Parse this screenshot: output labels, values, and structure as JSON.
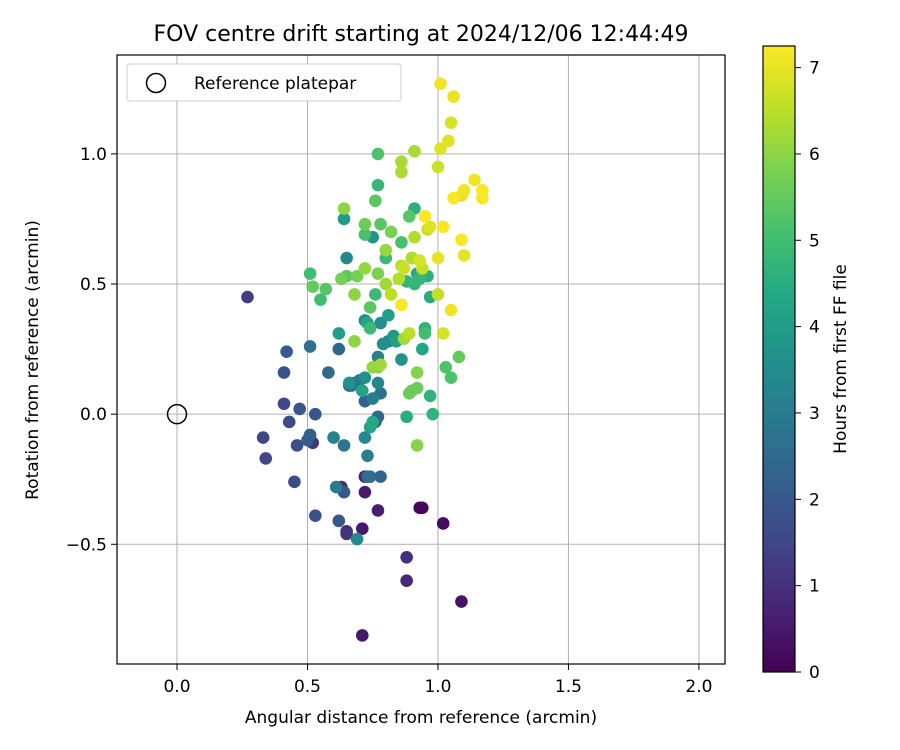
{
  "chart_data": {
    "type": "scatter",
    "title": "FOV centre drift starting at 2024/12/06 12:44:49",
    "xlabel": "Angular distance from reference (arcmin)",
    "ylabel": "Rotation from reference (arcmin)",
    "xlim": [
      -0.23,
      2.1
    ],
    "ylim": [
      -0.96,
      1.38
    ],
    "xticks": [
      0.0,
      0.5,
      1.0,
      1.5,
      2.0
    ],
    "xtick_labels": [
      "0.0",
      "0.5",
      "1.0",
      "1.5",
      "2.0"
    ],
    "yticks": [
      -0.5,
      0.0,
      0.5,
      1.0
    ],
    "ytick_labels": [
      "−0.5",
      "0.0",
      "0.5",
      "1.0"
    ],
    "grid": true,
    "legend": {
      "placement": "upper-left",
      "label": "Reference platepar"
    },
    "reference_point": {
      "x": 0.0,
      "y": 0.0
    },
    "colorbar": {
      "label": "Hours from first FF file",
      "min": 0,
      "max": 7.25,
      "ticks": [
        0,
        1,
        2,
        3,
        4,
        5,
        6,
        7
      ],
      "tick_labels": [
        "0",
        "1",
        "2",
        "3",
        "4",
        "5",
        "6",
        "7"
      ],
      "colormap": "viridis"
    },
    "series": [
      {
        "points": [
          {
            "x": 0.93,
            "y": -0.36,
            "h": 0.1
          },
          {
            "x": 0.94,
            "y": -0.36,
            "h": 0.15
          },
          {
            "x": 1.02,
            "y": -0.42,
            "h": 0.2
          },
          {
            "x": 1.09,
            "y": -0.72,
            "h": 0.4
          },
          {
            "x": 0.71,
            "y": -0.85,
            "h": 0.5
          },
          {
            "x": 0.71,
            "y": -0.44,
            "h": 0.5
          },
          {
            "x": 0.72,
            "y": -0.3,
            "h": 0.55
          },
          {
            "x": 0.77,
            "y": -0.37,
            "h": 0.6
          },
          {
            "x": 0.72,
            "y": -0.24,
            "h": 0.65
          },
          {
            "x": 0.88,
            "y": -0.64,
            "h": 0.8
          },
          {
            "x": 0.65,
            "y": -0.45,
            "h": 0.9
          },
          {
            "x": 0.88,
            "y": -0.55,
            "h": 1.0
          },
          {
            "x": 0.63,
            "y": -0.28,
            "h": 1.0
          },
          {
            "x": 0.65,
            "y": -0.46,
            "h": 1.1
          },
          {
            "x": 0.52,
            "y": -0.11,
            "h": 1.1
          },
          {
            "x": 0.27,
            "y": 0.45,
            "h": 1.3
          },
          {
            "x": 0.33,
            "y": -0.09,
            "h": 1.5
          },
          {
            "x": 0.34,
            "y": -0.17,
            "h": 1.5
          },
          {
            "x": 0.43,
            "y": -0.03,
            "h": 1.6
          },
          {
            "x": 0.41,
            "y": 0.04,
            "h": 1.6
          },
          {
            "x": 0.45,
            "y": -0.26,
            "h": 1.7
          },
          {
            "x": 0.46,
            "y": -0.12,
            "h": 1.7
          },
          {
            "x": 0.53,
            "y": -0.39,
            "h": 1.8
          },
          {
            "x": 0.41,
            "y": 0.16,
            "h": 1.8
          },
          {
            "x": 0.47,
            "y": 0.02,
            "h": 1.9
          },
          {
            "x": 0.53,
            "y": 0.0,
            "h": 1.9
          },
          {
            "x": 0.64,
            "y": -0.3,
            "h": 2.0
          },
          {
            "x": 0.62,
            "y": -0.41,
            "h": 2.0
          },
          {
            "x": 0.42,
            "y": 0.24,
            "h": 2.1
          },
          {
            "x": 0.5,
            "y": -0.1,
            "h": 2.1
          },
          {
            "x": 0.51,
            "y": -0.08,
            "h": 2.2
          },
          {
            "x": 0.76,
            "y": -0.03,
            "h": 2.2
          },
          {
            "x": 0.72,
            "y": 0.05,
            "h": 2.3
          },
          {
            "x": 0.66,
            "y": 0.11,
            "h": 2.3
          },
          {
            "x": 0.78,
            "y": -0.24,
            "h": 2.3
          },
          {
            "x": 0.62,
            "y": 0.25,
            "h": 2.4
          },
          {
            "x": 0.77,
            "y": -0.01,
            "h": 2.4
          },
          {
            "x": 0.58,
            "y": 0.16,
            "h": 2.5
          },
          {
            "x": 0.73,
            "y": -0.24,
            "h": 2.5
          },
          {
            "x": 0.68,
            "y": 0.12,
            "h": 2.6
          },
          {
            "x": 0.51,
            "y": 0.26,
            "h": 2.6
          },
          {
            "x": 0.74,
            "y": -0.24,
            "h": 2.6
          },
          {
            "x": 0.78,
            "y": 0.08,
            "h": 2.7
          },
          {
            "x": 0.7,
            "y": 0.13,
            "h": 2.8
          },
          {
            "x": 0.64,
            "y": -0.12,
            "h": 2.8
          },
          {
            "x": 0.67,
            "y": 0.11,
            "h": 2.9
          },
          {
            "x": 0.79,
            "y": 0.27,
            "h": 2.9
          },
          {
            "x": 0.61,
            "y": -0.28,
            "h": 3.0
          },
          {
            "x": 0.75,
            "y": 0.06,
            "h": 3.0
          },
          {
            "x": 0.77,
            "y": 0.22,
            "h": 3.1
          },
          {
            "x": 0.73,
            "y": -0.16,
            "h": 3.1
          },
          {
            "x": 0.6,
            "y": -0.09,
            "h": 3.2
          },
          {
            "x": 0.81,
            "y": 0.28,
            "h": 3.2
          },
          {
            "x": 0.77,
            "y": 0.12,
            "h": 3.3
          },
          {
            "x": 0.72,
            "y": -0.09,
            "h": 3.3
          },
          {
            "x": 0.69,
            "y": -0.48,
            "h": 3.4
          },
          {
            "x": 0.65,
            "y": 0.6,
            "h": 3.4
          },
          {
            "x": 0.78,
            "y": 0.35,
            "h": 3.5
          },
          {
            "x": 0.72,
            "y": 0.36,
            "h": 3.5
          },
          {
            "x": 0.79,
            "y": 0.27,
            "h": 3.6
          },
          {
            "x": 0.72,
            "y": 0.14,
            "h": 3.6
          },
          {
            "x": 0.86,
            "y": 0.21,
            "h": 3.7
          },
          {
            "x": 0.66,
            "y": 0.12,
            "h": 3.7
          },
          {
            "x": 0.75,
            "y": 0.68,
            "h": 3.8
          },
          {
            "x": 0.83,
            "y": 0.3,
            "h": 3.8
          },
          {
            "x": 0.64,
            "y": 0.75,
            "h": 3.9
          },
          {
            "x": 0.62,
            "y": 0.31,
            "h": 4.0
          },
          {
            "x": 0.84,
            "y": 0.28,
            "h": 4.1
          },
          {
            "x": 0.81,
            "y": 0.38,
            "h": 4.1
          },
          {
            "x": 0.74,
            "y": -0.05,
            "h": 4.2
          },
          {
            "x": 0.71,
            "y": 0.09,
            "h": 4.2
          },
          {
            "x": 0.73,
            "y": 0.35,
            "h": 4.3
          },
          {
            "x": 0.94,
            "y": 0.25,
            "h": 4.3
          },
          {
            "x": 0.75,
            "y": -0.03,
            "h": 4.4
          },
          {
            "x": 0.92,
            "y": 0.54,
            "h": 4.4
          },
          {
            "x": 0.9,
            "y": 0.6,
            "h": 4.5
          },
          {
            "x": 0.97,
            "y": 0.45,
            "h": 4.5
          },
          {
            "x": 0.88,
            "y": -0.01,
            "h": 4.5
          },
          {
            "x": 0.96,
            "y": 0.53,
            "h": 4.6
          },
          {
            "x": 0.91,
            "y": 0.79,
            "h": 4.6
          },
          {
            "x": 0.95,
            "y": 0.33,
            "h": 4.6
          },
          {
            "x": 0.97,
            "y": 0.07,
            "h": 4.7
          },
          {
            "x": 0.88,
            "y": 0.51,
            "h": 4.7
          },
          {
            "x": 0.98,
            "y": 0.0,
            "h": 4.7
          },
          {
            "x": 0.91,
            "y": 0.5,
            "h": 4.8
          },
          {
            "x": 0.93,
            "y": 0.52,
            "h": 4.8
          },
          {
            "x": 0.77,
            "y": 0.88,
            "h": 4.8
          },
          {
            "x": 0.76,
            "y": 0.46,
            "h": 4.9
          },
          {
            "x": 0.74,
            "y": 0.33,
            "h": 4.9
          },
          {
            "x": 0.8,
            "y": 0.6,
            "h": 4.9
          },
          {
            "x": 0.51,
            "y": 0.54,
            "h": 5.0
          },
          {
            "x": 0.55,
            "y": 0.44,
            "h": 5.0
          },
          {
            "x": 0.95,
            "y": 0.31,
            "h": 5.0
          },
          {
            "x": 0.86,
            "y": 0.66,
            "h": 5.1
          },
          {
            "x": 0.72,
            "y": 0.69,
            "h": 5.1
          },
          {
            "x": 1.03,
            "y": 0.18,
            "h": 5.2
          },
          {
            "x": 0.77,
            "y": 1.0,
            "h": 5.2
          },
          {
            "x": 1.05,
            "y": 0.14,
            "h": 5.2
          },
          {
            "x": 0.78,
            "y": 0.73,
            "h": 5.3
          },
          {
            "x": 0.57,
            "y": 0.48,
            "h": 5.3
          },
          {
            "x": 0.89,
            "y": 0.76,
            "h": 5.3
          },
          {
            "x": 0.65,
            "y": 0.53,
            "h": 5.4
          },
          {
            "x": 0.76,
            "y": 0.82,
            "h": 5.4
          },
          {
            "x": 0.74,
            "y": 0.41,
            "h": 5.4
          },
          {
            "x": 0.52,
            "y": 0.49,
            "h": 5.5
          },
          {
            "x": 1.08,
            "y": 0.22,
            "h": 5.5
          },
          {
            "x": 0.9,
            "y": 0.09,
            "h": 5.5
          },
          {
            "x": 0.92,
            "y": 0.1,
            "h": 5.6
          },
          {
            "x": 0.89,
            "y": 0.08,
            "h": 5.6
          },
          {
            "x": 0.72,
            "y": 0.73,
            "h": 5.6
          },
          {
            "x": 0.69,
            "y": 0.53,
            "h": 5.7
          },
          {
            "x": 0.63,
            "y": 0.52,
            "h": 5.7
          },
          {
            "x": 0.82,
            "y": 0.7,
            "h": 5.8
          },
          {
            "x": 0.77,
            "y": 0.54,
            "h": 5.8
          },
          {
            "x": 0.92,
            "y": -0.12,
            "h": 5.9
          },
          {
            "x": 0.77,
            "y": 0.18,
            "h": 5.9
          },
          {
            "x": 0.92,
            "y": 0.16,
            "h": 5.9
          },
          {
            "x": 0.68,
            "y": 0.46,
            "h": 6.0
          },
          {
            "x": 0.68,
            "y": 0.28,
            "h": 6.0
          },
          {
            "x": 0.64,
            "y": 0.79,
            "h": 6.0
          },
          {
            "x": 0.8,
            "y": 0.63,
            "h": 6.1
          },
          {
            "x": 0.72,
            "y": 0.56,
            "h": 6.1
          },
          {
            "x": 0.75,
            "y": 0.18,
            "h": 6.1
          },
          {
            "x": 0.78,
            "y": 0.19,
            "h": 6.2
          },
          {
            "x": 0.87,
            "y": 0.29,
            "h": 6.2
          },
          {
            "x": 0.8,
            "y": 0.5,
            "h": 6.2
          },
          {
            "x": 0.86,
            "y": 0.93,
            "h": 6.3
          },
          {
            "x": 0.86,
            "y": 0.97,
            "h": 6.3
          },
          {
            "x": 0.91,
            "y": 1.01,
            "h": 6.3
          },
          {
            "x": 0.85,
            "y": 0.52,
            "h": 6.4
          },
          {
            "x": 0.9,
            "y": 0.6,
            "h": 6.4
          },
          {
            "x": 0.91,
            "y": 0.68,
            "h": 6.4
          },
          {
            "x": 0.86,
            "y": 0.57,
            "h": 6.5
          },
          {
            "x": 0.89,
            "y": 0.31,
            "h": 6.5
          },
          {
            "x": 0.82,
            "y": 0.46,
            "h": 6.5
          },
          {
            "x": 1.0,
            "y": 0.46,
            "h": 6.6
          },
          {
            "x": 0.96,
            "y": 0.71,
            "h": 6.6
          },
          {
            "x": 0.94,
            "y": 0.56,
            "h": 6.6
          },
          {
            "x": 1.0,
            "y": 0.95,
            "h": 6.7
          },
          {
            "x": 0.87,
            "y": 0.56,
            "h": 6.7
          },
          {
            "x": 1.02,
            "y": 0.31,
            "h": 6.8
          },
          {
            "x": 0.93,
            "y": 0.59,
            "h": 6.8
          },
          {
            "x": 1.05,
            "y": 1.12,
            "h": 6.8
          },
          {
            "x": 0.97,
            "y": 0.72,
            "h": 6.9
          },
          {
            "x": 1.04,
            "y": 1.05,
            "h": 6.9
          },
          {
            "x": 1.01,
            "y": 1.02,
            "h": 6.9
          },
          {
            "x": 1.09,
            "y": 0.84,
            "h": 7.0
          },
          {
            "x": 1.0,
            "y": 0.6,
            "h": 7.0
          },
          {
            "x": 1.06,
            "y": 1.22,
            "h": 7.0
          },
          {
            "x": 1.1,
            "y": 0.61,
            "h": 7.0
          },
          {
            "x": 1.01,
            "y": 1.27,
            "h": 7.1
          },
          {
            "x": 1.1,
            "y": 0.86,
            "h": 7.1
          },
          {
            "x": 1.14,
            "y": 0.9,
            "h": 7.1
          },
          {
            "x": 1.05,
            "y": 0.4,
            "h": 7.1
          },
          {
            "x": 1.09,
            "y": 0.67,
            "h": 7.2
          },
          {
            "x": 1.02,
            "y": 0.72,
            "h": 7.2
          },
          {
            "x": 1.17,
            "y": 0.86,
            "h": 7.2
          },
          {
            "x": 1.06,
            "y": 0.83,
            "h": 7.2
          },
          {
            "x": 1.17,
            "y": 0.83,
            "h": 7.2
          },
          {
            "x": 0.95,
            "y": 0.76,
            "h": 7.2
          },
          {
            "x": 0.86,
            "y": 0.42,
            "h": 7.25
          }
        ]
      }
    ]
  }
}
